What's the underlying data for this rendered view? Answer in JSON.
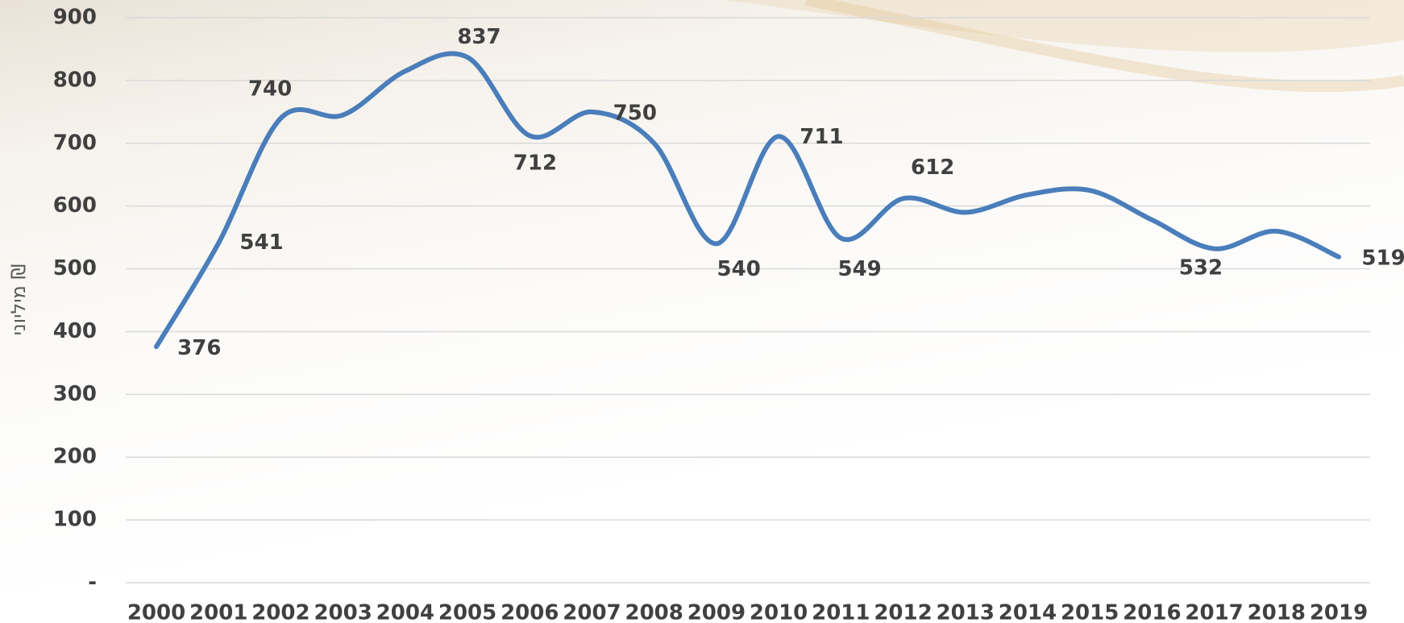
{
  "chart_data": {
    "type": "line",
    "y_label": "מיליוני ₪",
    "categories": [
      "2000",
      "2001",
      "2002",
      "2003",
      "2004",
      "2005",
      "2006",
      "2007",
      "2008",
      "2009",
      "2010",
      "2011",
      "2012",
      "2013",
      "2014",
      "2015",
      "2016",
      "2017",
      "2018",
      "2019"
    ],
    "series": [
      {
        "name": "מיליוני ₪",
        "color": "#4a7ebb",
        "values": [
          376,
          541,
          740,
          745,
          815,
          837,
          712,
          750,
          700,
          540,
          711,
          549,
          612,
          590,
          618,
          625,
          578,
          532,
          560,
          519
        ],
        "value_labels": [
          "376",
          "541",
          "740",
          null,
          null,
          "837",
          "712",
          "750",
          null,
          "540",
          "711",
          "549",
          "612",
          null,
          null,
          null,
          null,
          "532",
          null,
          "519"
        ]
      }
    ],
    "ylim": [
      0,
      900
    ],
    "yticks": [
      {
        "value": 0,
        "label": "-"
      },
      100,
      200,
      300,
      400,
      500,
      600,
      700,
      800,
      900
    ],
    "grid": true,
    "smooth": true
  }
}
